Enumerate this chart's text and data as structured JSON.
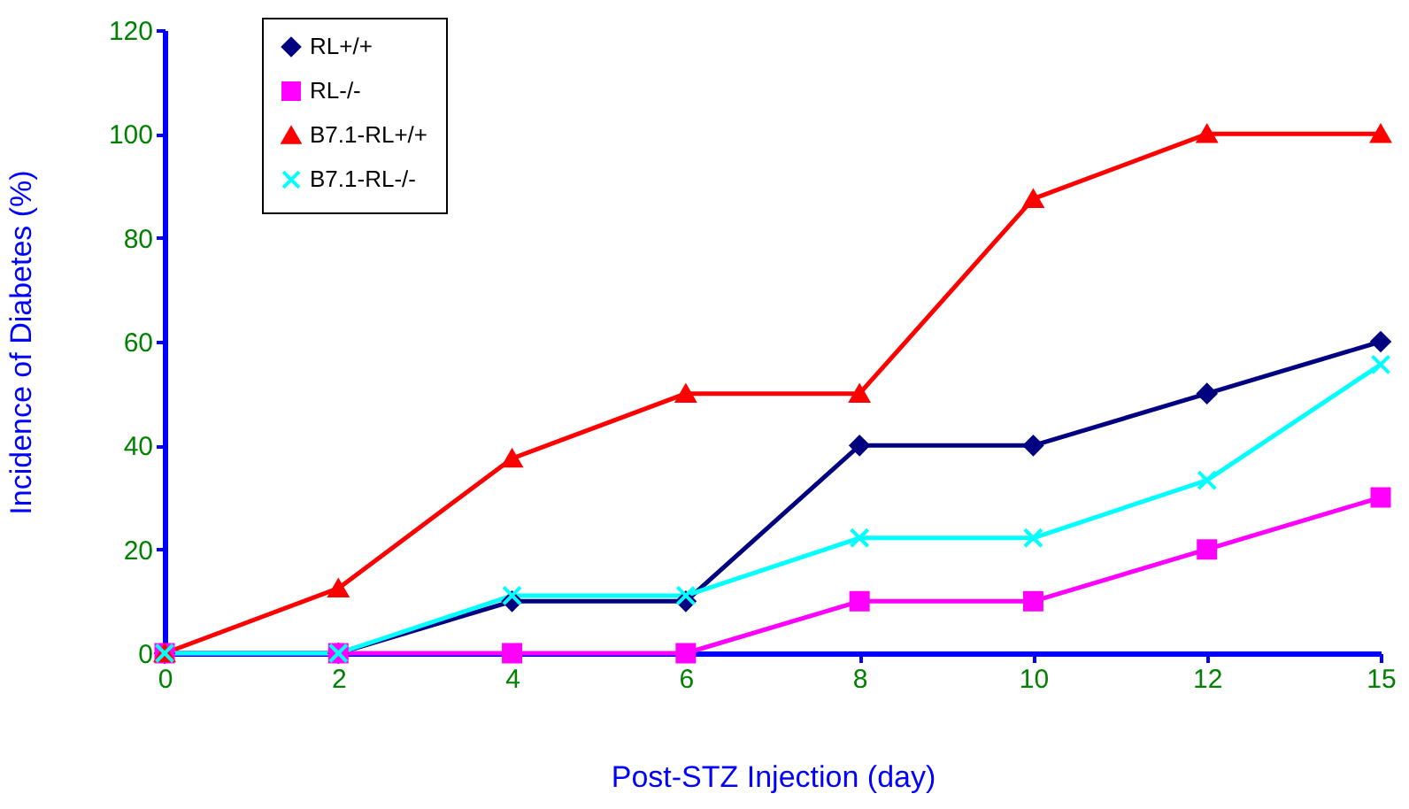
{
  "chart_data": {
    "type": "line",
    "xlabel": "Post-STZ Injection (day)",
    "ylabel": "Incidence of Diabetes (%)",
    "categories": [
      "0",
      "2",
      "4",
      "6",
      "8",
      "10",
      "12",
      "15"
    ],
    "ylim": [
      0,
      120
    ],
    "yticks": [
      0,
      20,
      40,
      60,
      80,
      100,
      120
    ],
    "grid": false,
    "legend": "top left",
    "line_style": "solid",
    "series": [
      {
        "name": "RL+/+",
        "color": "#000080",
        "marker": "diamond",
        "values": [
          0,
          0,
          10,
          10,
          40,
          40,
          50,
          60
        ]
      },
      {
        "name": "RL-/-",
        "color": "#ff00ff",
        "marker": "square",
        "values": [
          0,
          0,
          0,
          0,
          10,
          10,
          20,
          30
        ]
      },
      {
        "name": "B7.1-RL+/+",
        "color": "#ff0000",
        "marker": "triangle",
        "values": [
          0,
          12.5,
          37.5,
          50,
          50,
          87.5,
          100,
          100
        ]
      },
      {
        "name": "B7.1-RL-/-",
        "color": "#00ffff",
        "marker": "cross",
        "values": [
          0,
          0,
          11.1,
          11.1,
          22.2,
          22.2,
          33.3,
          55.6
        ]
      }
    ]
  }
}
